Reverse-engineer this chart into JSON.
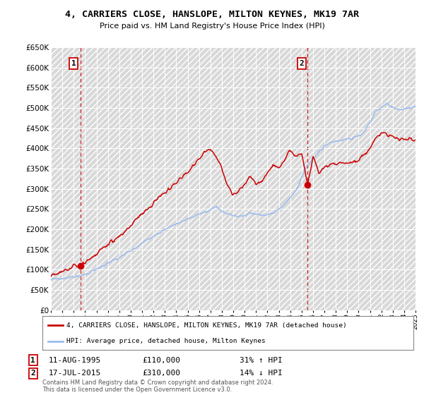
{
  "title": "4, CARRIERS CLOSE, HANSLOPE, MILTON KEYNES, MK19 7AR",
  "subtitle": "Price paid vs. HM Land Registry's House Price Index (HPI)",
  "ylim": [
    0,
    650000
  ],
  "yticks": [
    0,
    50000,
    100000,
    150000,
    200000,
    250000,
    300000,
    350000,
    400000,
    450000,
    500000,
    550000,
    600000,
    650000
  ],
  "background_color": "#ffffff",
  "hatch_color": "#d8d8d8",
  "grid_color": "#ffffff",
  "hpi_line_color": "#99bbee",
  "price_line_color": "#cc0000",
  "sale1_x": 1995.6,
  "sale1_y": 110000,
  "sale1_date_str": "11-AUG-1995",
  "sale1_pct": "31% ↑ HPI",
  "sale2_x": 2015.54,
  "sale2_y": 310000,
  "sale2_date_str": "17-JUL-2015",
  "sale2_pct": "14% ↓ HPI",
  "legend_house_label": "4, CARRIERS CLOSE, HANSLOPE, MILTON KEYNES, MK19 7AR (detached house)",
  "legend_hpi_label": "HPI: Average price, detached house, Milton Keynes",
  "footer": "Contains HM Land Registry data © Crown copyright and database right 2024.\nThis data is licensed under the Open Government Licence v3.0.",
  "xmin": 1993,
  "xmax": 2025
}
